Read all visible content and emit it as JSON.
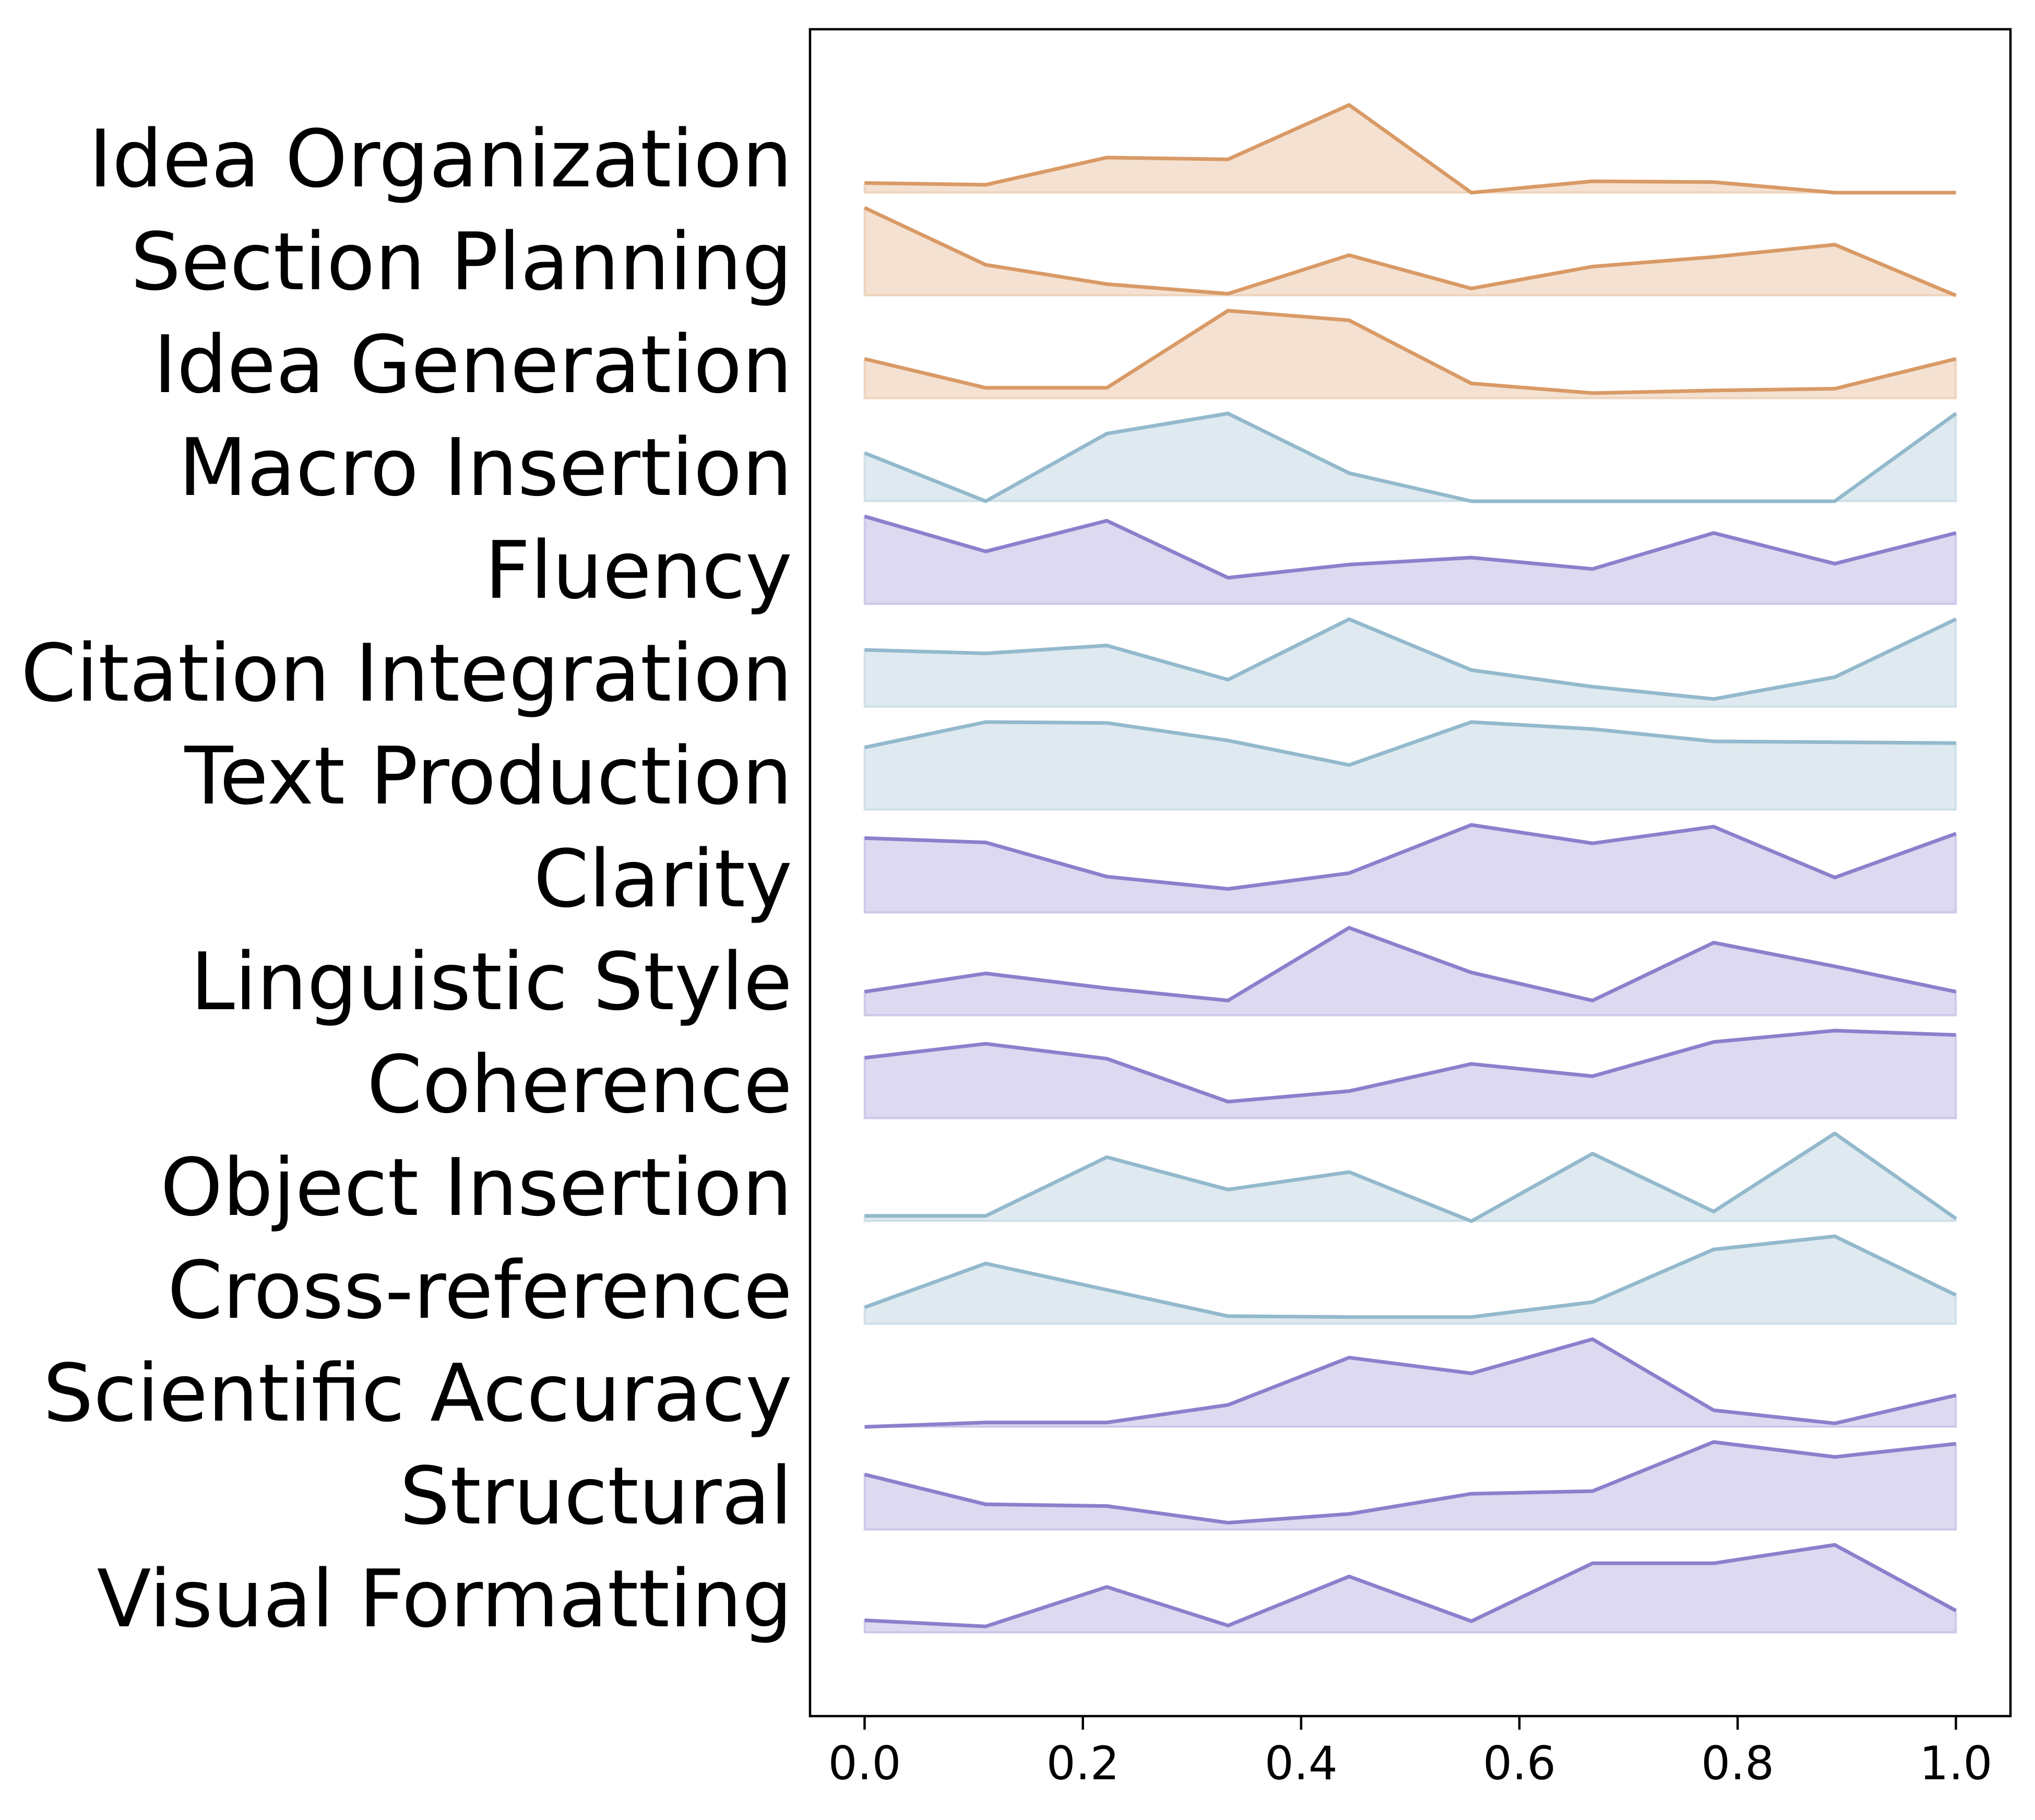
{
  "chart_data": {
    "type": "area",
    "title": "",
    "xlabel": "",
    "ylabel": "",
    "xlim": [
      -0.05,
      1.05
    ],
    "x_ticks": [
      "0.0",
      "0.2",
      "0.4",
      "0.6",
      "0.8",
      "1.0"
    ],
    "x": [
      0.0,
      0.111,
      0.222,
      0.333,
      0.444,
      0.556,
      0.667,
      0.778,
      0.889,
      1.0
    ],
    "grid": false,
    "legend": "none",
    "colors": {
      "orange": "#d99a66",
      "blue": "#93b9cc",
      "purple": "#8b80cc"
    },
    "series": [
      {
        "name": "Idea Organization",
        "color": "orange",
        "values": [
          0.11,
          0.09,
          0.4,
          0.38,
          1.0,
          0.0,
          0.13,
          0.12,
          0.0,
          0.0
        ]
      },
      {
        "name": "Section Planning",
        "color": "orange",
        "values": [
          1.0,
          0.35,
          0.13,
          0.02,
          0.46,
          0.08,
          0.33,
          0.44,
          0.58,
          0.0
        ]
      },
      {
        "name": "Idea Generation",
        "color": "orange",
        "values": [
          0.45,
          0.12,
          0.12,
          1.0,
          0.89,
          0.17,
          0.06,
          0.09,
          0.11,
          0.45
        ]
      },
      {
        "name": "Macro Insertion",
        "color": "blue",
        "values": [
          0.55,
          0.0,
          0.77,
          1.0,
          0.32,
          0.0,
          0.0,
          0.0,
          0.0,
          1.0
        ]
      },
      {
        "name": "Fluency",
        "color": "purple",
        "values": [
          1.0,
          0.6,
          0.95,
          0.3,
          0.45,
          0.53,
          0.4,
          0.81,
          0.46,
          0.81
        ]
      },
      {
        "name": "Citation Integration",
        "color": "blue",
        "values": [
          0.65,
          0.61,
          0.7,
          0.31,
          1.0,
          0.42,
          0.23,
          0.09,
          0.34,
          1.0
        ]
      },
      {
        "name": "Text Production",
        "color": "blue",
        "values": [
          0.71,
          1.0,
          0.99,
          0.79,
          0.51,
          1.0,
          0.92,
          0.78,
          0.77,
          0.76
        ]
      },
      {
        "name": "Clarity",
        "color": "purple",
        "values": [
          0.85,
          0.8,
          0.41,
          0.27,
          0.45,
          1.0,
          0.79,
          0.98,
          0.4,
          0.9
        ]
      },
      {
        "name": "Linguistic Style",
        "color": "purple",
        "values": [
          0.27,
          0.48,
          0.31,
          0.17,
          1.0,
          0.49,
          0.17,
          0.83,
          0.56,
          0.27
        ]
      },
      {
        "name": "Coherence",
        "color": "purple",
        "values": [
          0.69,
          0.85,
          0.68,
          0.19,
          0.31,
          0.62,
          0.48,
          0.87,
          1.0,
          0.95
        ]
      },
      {
        "name": "Object Insertion",
        "color": "blue",
        "values": [
          0.06,
          0.06,
          0.73,
          0.36,
          0.56,
          0.0,
          0.77,
          0.11,
          1.0,
          0.03
        ]
      },
      {
        "name": "Cross-reference",
        "color": "blue",
        "values": [
          0.19,
          0.69,
          0.39,
          0.09,
          0.08,
          0.08,
          0.25,
          0.85,
          1.0,
          0.33
        ]
      },
      {
        "name": "Scientific Accuracy",
        "color": "purple",
        "values": [
          0.0,
          0.05,
          0.05,
          0.25,
          0.79,
          0.61,
          1.0,
          0.19,
          0.04,
          0.36
        ]
      },
      {
        "name": "Structural",
        "color": "purple",
        "values": [
          0.63,
          0.29,
          0.27,
          0.08,
          0.18,
          0.41,
          0.44,
          1.0,
          0.83,
          0.98
        ]
      },
      {
        "name": "Visual Formatting",
        "color": "purple",
        "values": [
          0.14,
          0.07,
          0.52,
          0.08,
          0.64,
          0.13,
          0.79,
          0.79,
          1.0,
          0.25
        ]
      }
    ]
  }
}
